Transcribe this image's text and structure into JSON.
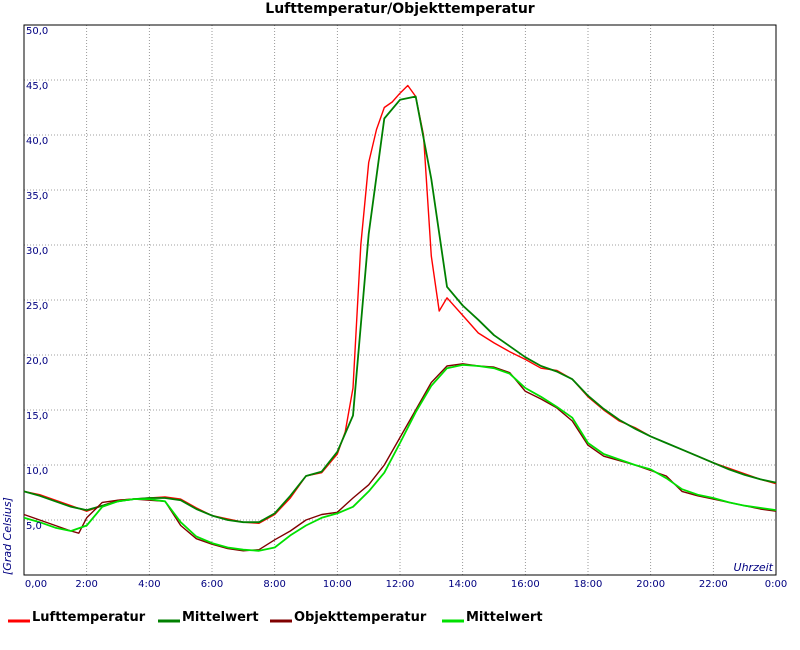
{
  "chart_data": {
    "type": "line",
    "title": "Lufttemperatur/Objekttemperatur",
    "xlabel": "Uhrzeit",
    "ylabel": "[Grad Celsius]",
    "xlim": [
      0,
      24
    ],
    "ylim": [
      0,
      50
    ],
    "grid": true,
    "legend_position": "bottom",
    "x_ticks": [
      {
        "v": 0,
        "label": "0,00"
      },
      {
        "v": 2,
        "label": "2:00"
      },
      {
        "v": 4,
        "label": "4:00"
      },
      {
        "v": 6,
        "label": "6:00"
      },
      {
        "v": 8,
        "label": "8:00"
      },
      {
        "v": 10,
        "label": "10:00"
      },
      {
        "v": 12,
        "label": "12:00"
      },
      {
        "v": 14,
        "label": "14:00"
      },
      {
        "v": 16,
        "label": "16:00"
      },
      {
        "v": 18,
        "label": "18:00"
      },
      {
        "v": 20,
        "label": "20:00"
      },
      {
        "v": 22,
        "label": "22:00"
      },
      {
        "v": 24,
        "label": "0:00"
      }
    ],
    "y_ticks": [
      {
        "v": 5,
        "label": "5,0"
      },
      {
        "v": 10,
        "label": "10,0"
      },
      {
        "v": 15,
        "label": "15,0"
      },
      {
        "v": 20,
        "label": "20,0"
      },
      {
        "v": 25,
        "label": "25,0"
      },
      {
        "v": 30,
        "label": "30,0"
      },
      {
        "v": 35,
        "label": "35,0"
      },
      {
        "v": 40,
        "label": "40,0"
      },
      {
        "v": 45,
        "label": "45,0"
      },
      {
        "v": 50,
        "label": "50,0"
      }
    ],
    "series": [
      {
        "name": "Lufttemperatur",
        "color": "#ff0000",
        "x": [
          0,
          0.5,
          1,
          1.5,
          2,
          2.5,
          3,
          3.5,
          4,
          4.5,
          5,
          5.5,
          6,
          6.5,
          7,
          7.5,
          8,
          8.5,
          9,
          9.5,
          10,
          10.25,
          10.5,
          10.75,
          11,
          11.25,
          11.5,
          11.75,
          12,
          12.25,
          12.5,
          12.75,
          13,
          13.25,
          13.5,
          14,
          14.5,
          15,
          15.5,
          16,
          16.5,
          17,
          17.5,
          18,
          18.5,
          19,
          19.5,
          20,
          20.5,
          21,
          21.5,
          22,
          22.5,
          23,
          23.5,
          24
        ],
        "y": [
          7.6,
          7.3,
          6.8,
          6.3,
          5.8,
          6.3,
          6.8,
          6.9,
          7.0,
          7.1,
          6.9,
          6.1,
          5.4,
          5.1,
          4.8,
          4.7,
          5.5,
          7.0,
          9.0,
          9.3,
          11.0,
          13.0,
          17.0,
          30.0,
          37.5,
          40.5,
          42.5,
          43.0,
          43.8,
          44.5,
          43.5,
          40.0,
          29.0,
          24.0,
          25.2,
          23.6,
          22.0,
          21.1,
          20.3,
          19.6,
          18.8,
          18.6,
          17.8,
          16.2,
          15.0,
          14.0,
          13.4,
          12.6,
          12.0,
          11.4,
          10.8,
          10.2,
          9.7,
          9.2,
          8.7,
          8.3
        ]
      },
      {
        "name": "Mittelwert",
        "color": "#008000",
        "x": [
          0,
          0.5,
          1,
          1.5,
          2,
          2.5,
          3,
          3.5,
          4,
          4.5,
          5,
          5.5,
          6,
          6.5,
          7,
          7.5,
          8,
          8.5,
          9,
          9.5,
          10,
          10.5,
          11,
          11.5,
          12,
          12.5,
          13,
          13.5,
          14,
          14.5,
          15,
          15.5,
          16,
          16.5,
          17,
          17.5,
          18,
          18.5,
          19,
          19.5,
          20,
          20.5,
          21,
          21.5,
          22,
          22.5,
          23,
          23.5,
          24
        ],
        "y": [
          7.6,
          7.2,
          6.7,
          6.2,
          5.9,
          6.3,
          6.7,
          6.9,
          7.0,
          7.0,
          6.8,
          6.0,
          5.4,
          5.0,
          4.8,
          4.8,
          5.6,
          7.2,
          9.0,
          9.4,
          11.2,
          14.5,
          31.0,
          41.5,
          43.2,
          43.5,
          36.0,
          26.2,
          24.5,
          23.2,
          21.8,
          20.8,
          19.8,
          19.0,
          18.5,
          17.8,
          16.3,
          15.1,
          14.1,
          13.3,
          12.6,
          12.0,
          11.4,
          10.8,
          10.2,
          9.6,
          9.1,
          8.7,
          8.4
        ]
      },
      {
        "name": "Objekttemperatur",
        "color": "#800000",
        "x": [
          0,
          0.5,
          1,
          1.5,
          1.75,
          2,
          2.5,
          3,
          3.5,
          4,
          4.5,
          5,
          5.5,
          6,
          6.5,
          7,
          7.5,
          8,
          8.5,
          9,
          9.5,
          10,
          10.5,
          11,
          11.5,
          12,
          12.5,
          13,
          13.5,
          14,
          14.5,
          15,
          15.5,
          16,
          16.5,
          17,
          17.5,
          18,
          18.5,
          19,
          19.5,
          20,
          20.5,
          21,
          21.5,
          22,
          22.5,
          23,
          23.5,
          24
        ],
        "y": [
          5.5,
          5.0,
          4.5,
          4.0,
          3.8,
          5.2,
          6.6,
          6.8,
          6.9,
          6.8,
          6.7,
          4.5,
          3.3,
          2.8,
          2.4,
          2.2,
          2.3,
          3.2,
          4.0,
          5.0,
          5.5,
          5.7,
          7.0,
          8.2,
          10.0,
          12.5,
          15.0,
          17.5,
          19.0,
          19.2,
          19.0,
          18.9,
          18.4,
          16.7,
          16.0,
          15.2,
          14.0,
          11.8,
          10.8,
          10.4,
          10.0,
          9.5,
          9.0,
          7.6,
          7.2,
          6.9,
          6.6,
          6.3,
          6.0,
          5.8
        ]
      },
      {
        "name": "Mittelwert",
        "color": "#00e000",
        "x": [
          0,
          0.5,
          1,
          1.5,
          2,
          2.5,
          3,
          3.5,
          4,
          4.5,
          5,
          5.5,
          6,
          6.5,
          7,
          7.5,
          8,
          8.5,
          9,
          9.5,
          10,
          10.5,
          11,
          11.5,
          12,
          12.5,
          13,
          13.5,
          14,
          14.5,
          15,
          15.5,
          16,
          16.5,
          17,
          17.5,
          18,
          18.5,
          19,
          19.5,
          20,
          20.5,
          21,
          21.5,
          22,
          22.5,
          23,
          23.5,
          24
        ],
        "y": [
          5.2,
          4.8,
          4.3,
          4.0,
          4.5,
          6.2,
          6.7,
          6.9,
          6.9,
          6.7,
          4.8,
          3.5,
          2.9,
          2.5,
          2.3,
          2.2,
          2.5,
          3.6,
          4.5,
          5.2,
          5.6,
          6.2,
          7.6,
          9.3,
          12.0,
          14.8,
          17.2,
          18.8,
          19.1,
          19.0,
          18.8,
          18.3,
          17.0,
          16.2,
          15.3,
          14.3,
          12.0,
          11.0,
          10.5,
          10.0,
          9.6,
          8.8,
          7.8,
          7.3,
          7.0,
          6.6,
          6.3,
          6.1,
          5.9
        ]
      }
    ]
  }
}
